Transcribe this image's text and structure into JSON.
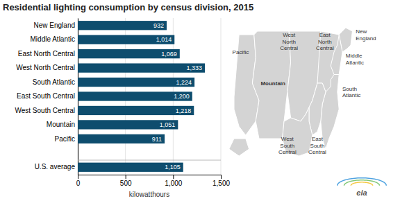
{
  "chart_data": {
    "type": "bar",
    "orientation": "horizontal",
    "title": "Residential lighting consumption by census division, 2015",
    "categories": [
      "New England",
      "Middle Atlantic",
      "East North Central",
      "West North Central",
      "South Atlantic",
      "East South Central",
      "West South Central",
      "Mountain",
      "Pacific",
      null,
      "U.S. average"
    ],
    "values": [
      932,
      1014,
      1069,
      1333,
      1224,
      1200,
      1218,
      1051,
      911,
      null,
      1105
    ],
    "value_labels": [
      "932",
      "1,014",
      "1,069",
      "1,333",
      "1,224",
      "1,200",
      "1,218",
      "1,051",
      "911",
      null,
      "1,105"
    ],
    "data_labels": true,
    "color": "#0e4d6e",
    "xlabel": "kilowatthours",
    "xlim": [
      0,
      1500
    ],
    "xticks": [
      0,
      500,
      {
        "value": 1000,
        "label": "1,000"
      },
      {
        "value": 1500,
        "label": "1,500"
      }
    ],
    "grid": true,
    "annotations": [
      "Pacific",
      "Mountain",
      "West\nNorth\nCentral",
      "East\nNorth\nCentral",
      "New\nEngland",
      "Middle\nAtlantic",
      "South\nAtlantic",
      "East\nSouth\nCentral",
      "West\nSouth\nCentral",
      "eia"
    ]
  }
}
